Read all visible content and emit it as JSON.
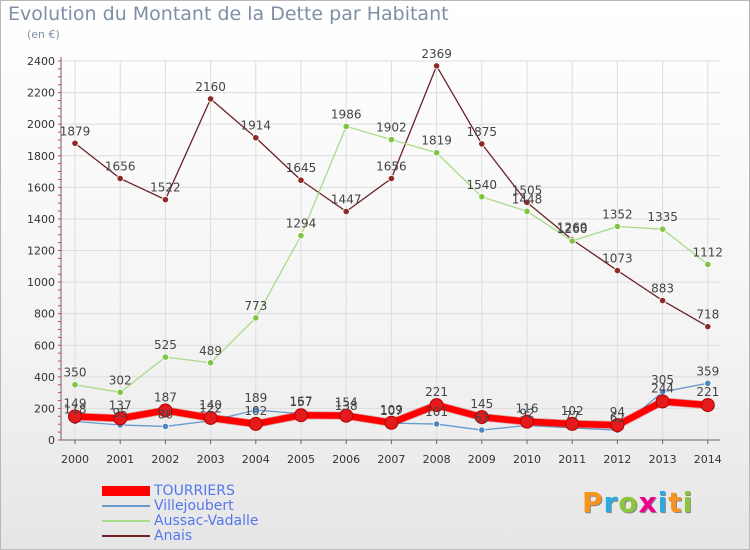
{
  "header": {
    "title": "Evolution du Montant de la Dette par Habitant",
    "unit": "(en €)"
  },
  "logo": {
    "letters": [
      "P",
      "r",
      "o",
      "x",
      "i",
      "t",
      "i"
    ]
  },
  "chart_data": {
    "type": "line",
    "title": "Evolution du Montant de la Dette par Habitant",
    "subtitle": "(en €)",
    "xlabel": "",
    "ylabel": "",
    "categories": [
      "2000",
      "2001",
      "2002",
      "2003",
      "2004",
      "2005",
      "2006",
      "2007",
      "2008",
      "2009",
      "2010",
      "2011",
      "2012",
      "2013",
      "2014"
    ],
    "ylim": [
      0,
      2400
    ],
    "yticks": [
      0,
      200,
      400,
      600,
      800,
      1000,
      1200,
      1400,
      1600,
      1800,
      2000,
      2200,
      2400
    ],
    "grid": true,
    "legend_position": "bottom-left",
    "series": [
      {
        "name": "Anais",
        "color": "#6b2226",
        "marker": "#8c2a2a",
        "width": 1.3,
        "values": [
          1879,
          1656,
          1522,
          2160,
          1914,
          1645,
          1447,
          1656,
          2369,
          1875,
          1505,
          1269,
          1073,
          883,
          718
        ],
        "labels": [
          "1879",
          "1656",
          "1522",
          "2160",
          "1914",
          "1645",
          "1447",
          "1656",
          "2369",
          "1875",
          "1505",
          "1269",
          "1073",
          "883",
          "718"
        ]
      },
      {
        "name": "Aussac-Vadalle",
        "color": "#a8dc88",
        "marker": "#7fc543",
        "width": 1.3,
        "values": [
          350,
          302,
          525,
          489,
          773,
          1294,
          1986,
          1902,
          1819,
          1540,
          1448,
          1260,
          1352,
          1335,
          1112
        ],
        "labels": [
          "350",
          "302",
          "525",
          "489",
          "773",
          "1294",
          "1986",
          "1902",
          "1819",
          "1540",
          "1448",
          "1260",
          "1352",
          "1335",
          "1112"
        ]
      },
      {
        "name": "Villejoubert",
        "color": "#6699cc",
        "marker": "#4f86c6",
        "width": 1.3,
        "values": [
          118,
          95,
          86,
          122,
          189,
          167,
          138,
          107,
          101,
          63,
          92,
          77,
          62,
          305,
          359
        ],
        "labels": [
          "118",
          "95",
          "86",
          "122",
          "189",
          "167",
          "138",
          "107",
          "101",
          "63",
          "92",
          "77",
          "62",
          "305",
          "359"
        ]
      },
      {
        "name": "TOURRIERS",
        "color": "#ff0000",
        "marker": "#e41a1c",
        "width": 6.5,
        "values": [
          149,
          137,
          187,
          140,
          102,
          157,
          154,
          109,
          221,
          145,
          116,
          102,
          94,
          244,
          221
        ],
        "labels": [
          "149",
          "137",
          "187",
          "140",
          "102",
          "157",
          "154",
          "109",
          "221",
          "145",
          "116",
          "102",
          "94",
          "244",
          "221"
        ]
      }
    ]
  }
}
